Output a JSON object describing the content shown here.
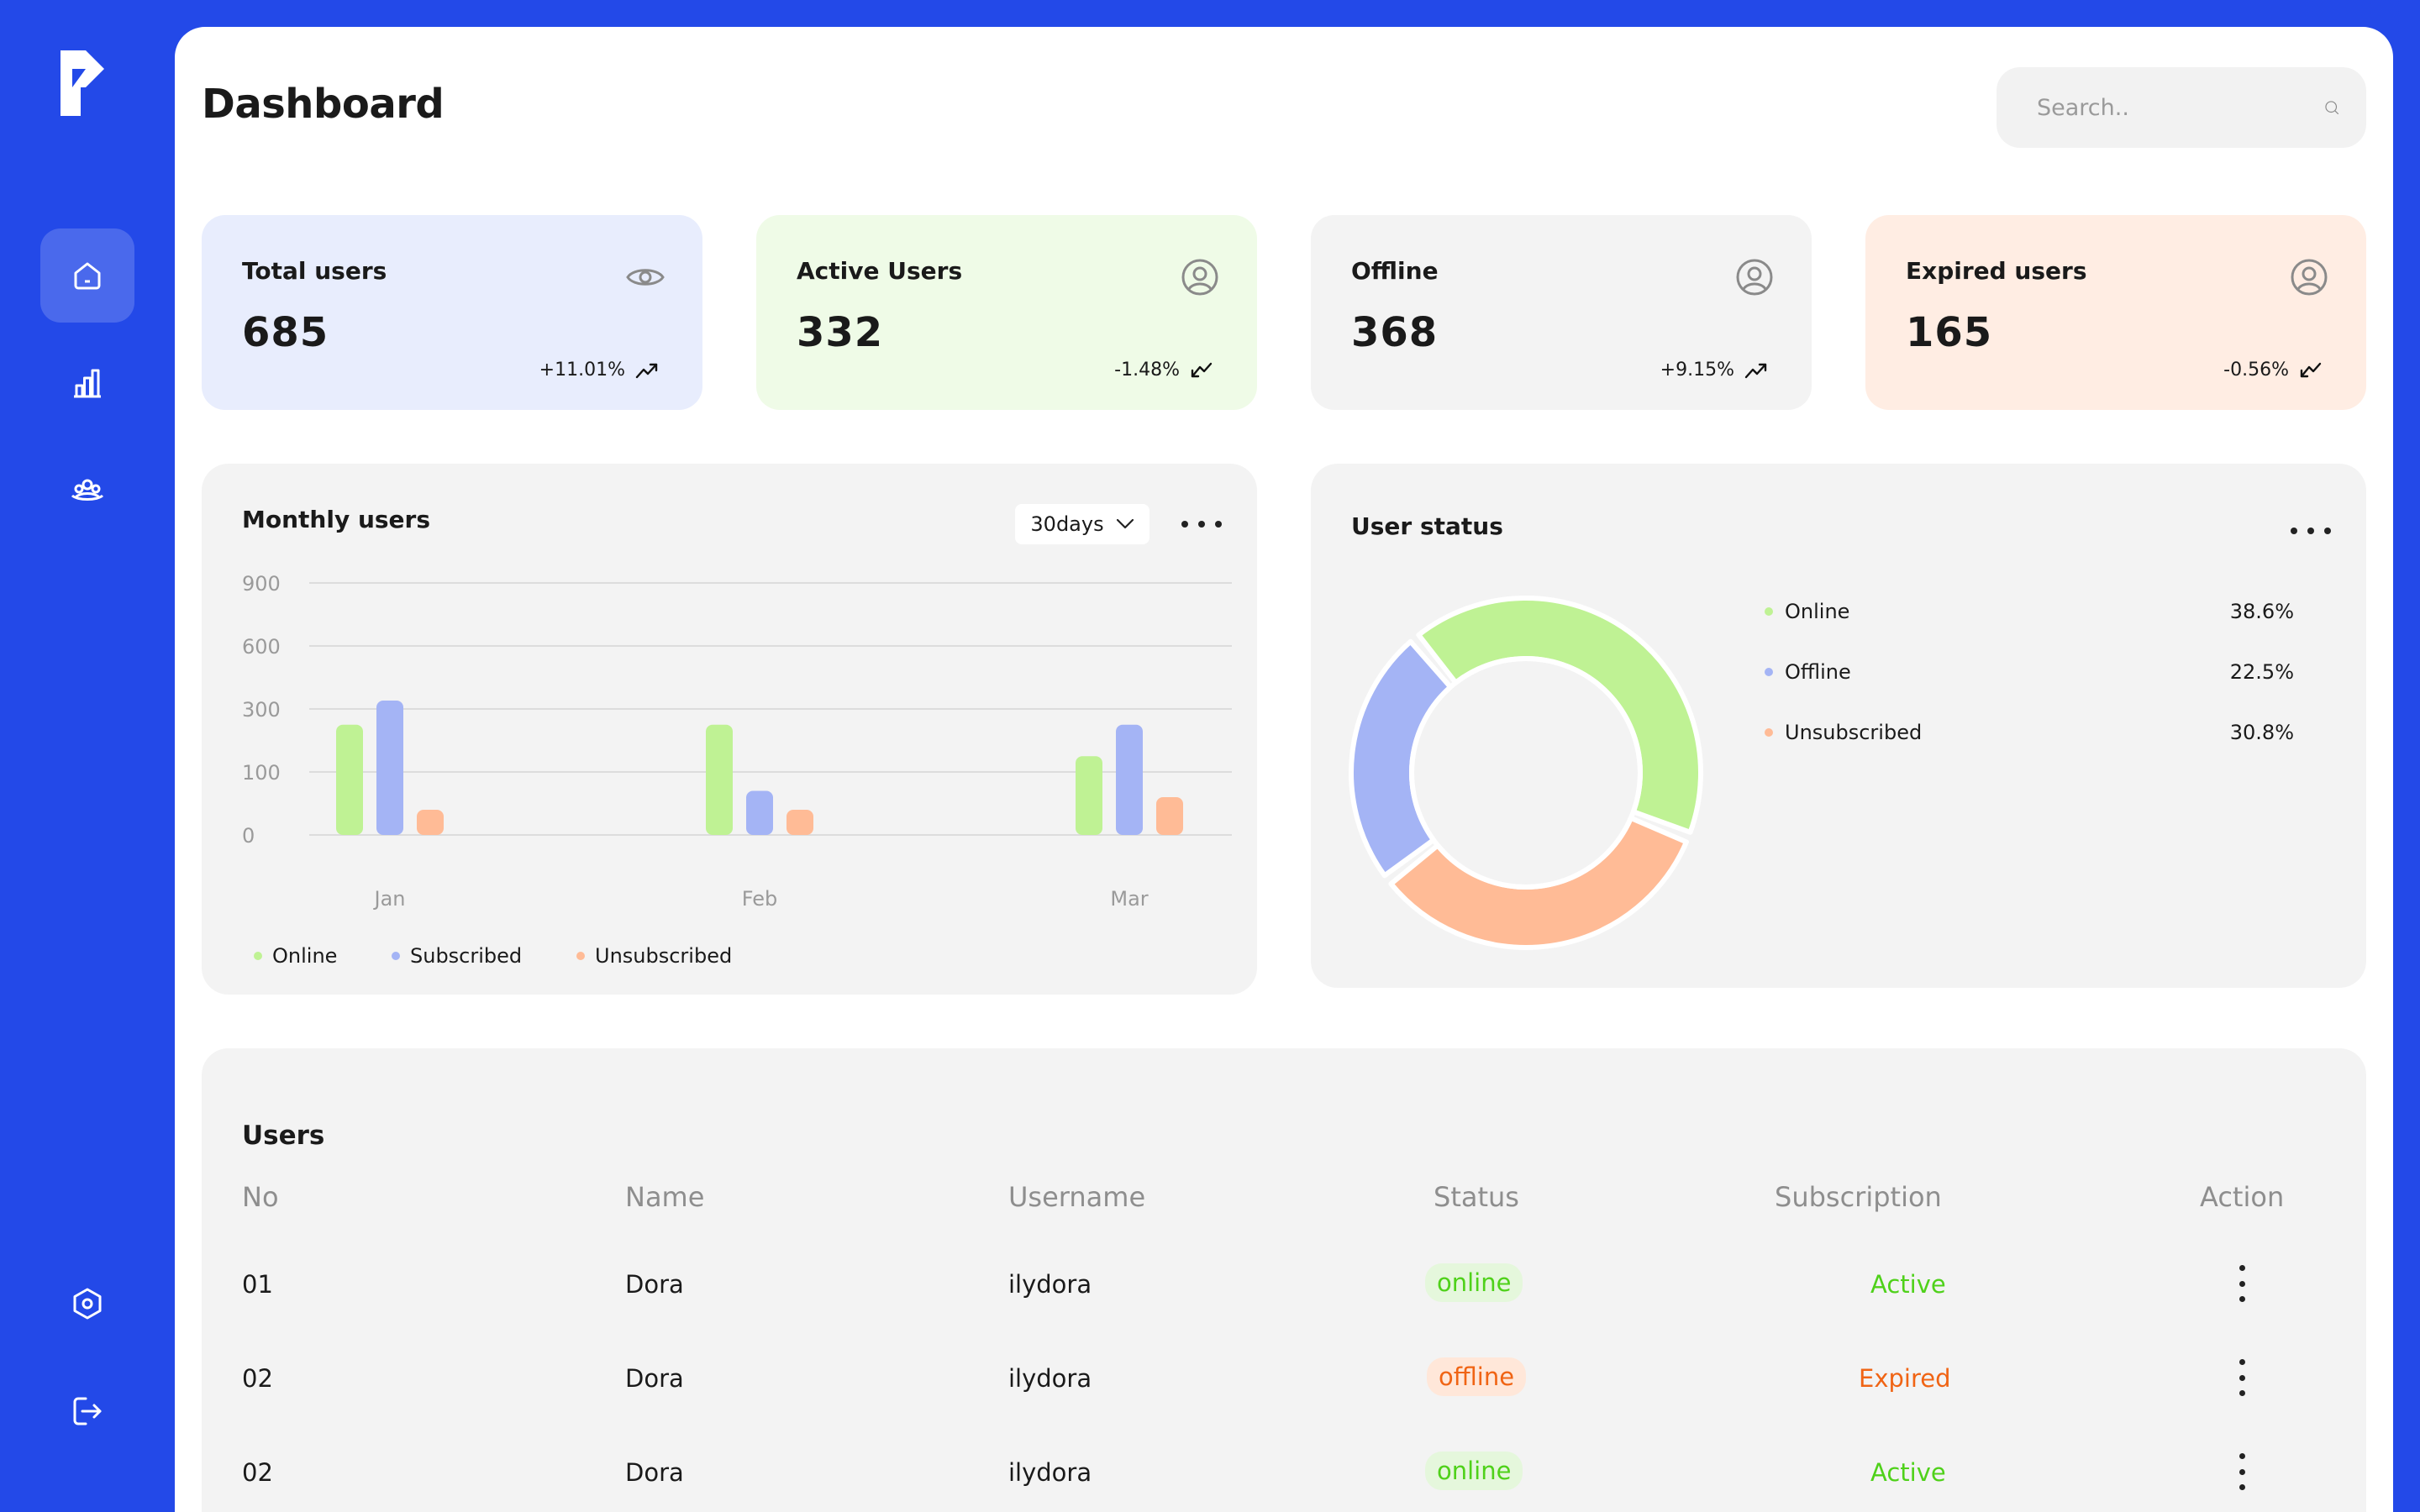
{
  "app": {
    "title": "Dashboard"
  },
  "sidebar": {
    "items": [
      {
        "name": "home",
        "icon": "home-icon",
        "active": true
      },
      {
        "name": "analytics",
        "icon": "bar-chart-icon",
        "active": false
      },
      {
        "name": "users",
        "icon": "users-icon",
        "active": false
      },
      {
        "name": "settings",
        "icon": "settings-icon",
        "active": false
      },
      {
        "name": "logout",
        "icon": "logout-icon",
        "active": false
      }
    ]
  },
  "search": {
    "placeholder": "Search..",
    "value": ""
  },
  "stats": [
    {
      "label": "Total users",
      "value": "685",
      "change": "+11.01%",
      "trend": "up",
      "icon": "eye-icon",
      "bg": "#E8EDFD"
    },
    {
      "label": "Active Users",
      "value": "332",
      "change": "-1.48%",
      "trend": "down",
      "icon": "user-circle-icon",
      "bg": "#EFFBE7"
    },
    {
      "label": "Offline",
      "value": "368",
      "change": "+9.15%",
      "trend": "up",
      "icon": "user-circle-icon",
      "bg": "#F3F3F3"
    },
    {
      "label": "Expired users",
      "value": "165",
      "change": "-0.56%",
      "trend": "down",
      "icon": "user-circle-icon",
      "bg": "#FFEDE3"
    }
  ],
  "monthly": {
    "title": "Monthly users",
    "range": "30days"
  },
  "user_status": {
    "title": "User status"
  },
  "colors": {
    "online": "#BFF294",
    "subscribed": "#A4B4F5",
    "unsubscribed": "#FFBB96",
    "accent": "#2349E8"
  },
  "chart_data": [
    {
      "type": "bar",
      "categories": [
        "Jan",
        "Feb",
        "Mar"
      ],
      "y_ticks": [
        "0",
        "100",
        "300",
        "600",
        "900"
      ],
      "series": [
        {
          "name": "Online",
          "values": [
            250,
            250,
            150
          ]
        },
        {
          "name": "Subscribed",
          "values": [
            340,
            70,
            250
          ]
        },
        {
          "name": "Unsubscribed",
          "values": [
            40,
            40,
            60
          ]
        }
      ]
    },
    {
      "type": "pie",
      "labels": [
        "Online",
        "Offline",
        "Unsubscribed"
      ],
      "values": [
        38.6,
        22.5,
        30.8
      ],
      "display": [
        "38.6%",
        "22.5%",
        "30.8%"
      ]
    }
  ],
  "users_table": {
    "title": "Users",
    "columns": [
      "No",
      "Name",
      "Username",
      "Status",
      "Subscription",
      "Action"
    ],
    "rows": [
      {
        "no": "01",
        "name": "Dora",
        "username": "ilydora",
        "status": "online",
        "subscription": "Active"
      },
      {
        "no": "02",
        "name": "Dora",
        "username": "ilydora",
        "status": "offline",
        "subscription": "Expired"
      },
      {
        "no": "02",
        "name": "Dora",
        "username": "ilydora",
        "status": "online",
        "subscription": "Active"
      }
    ]
  }
}
